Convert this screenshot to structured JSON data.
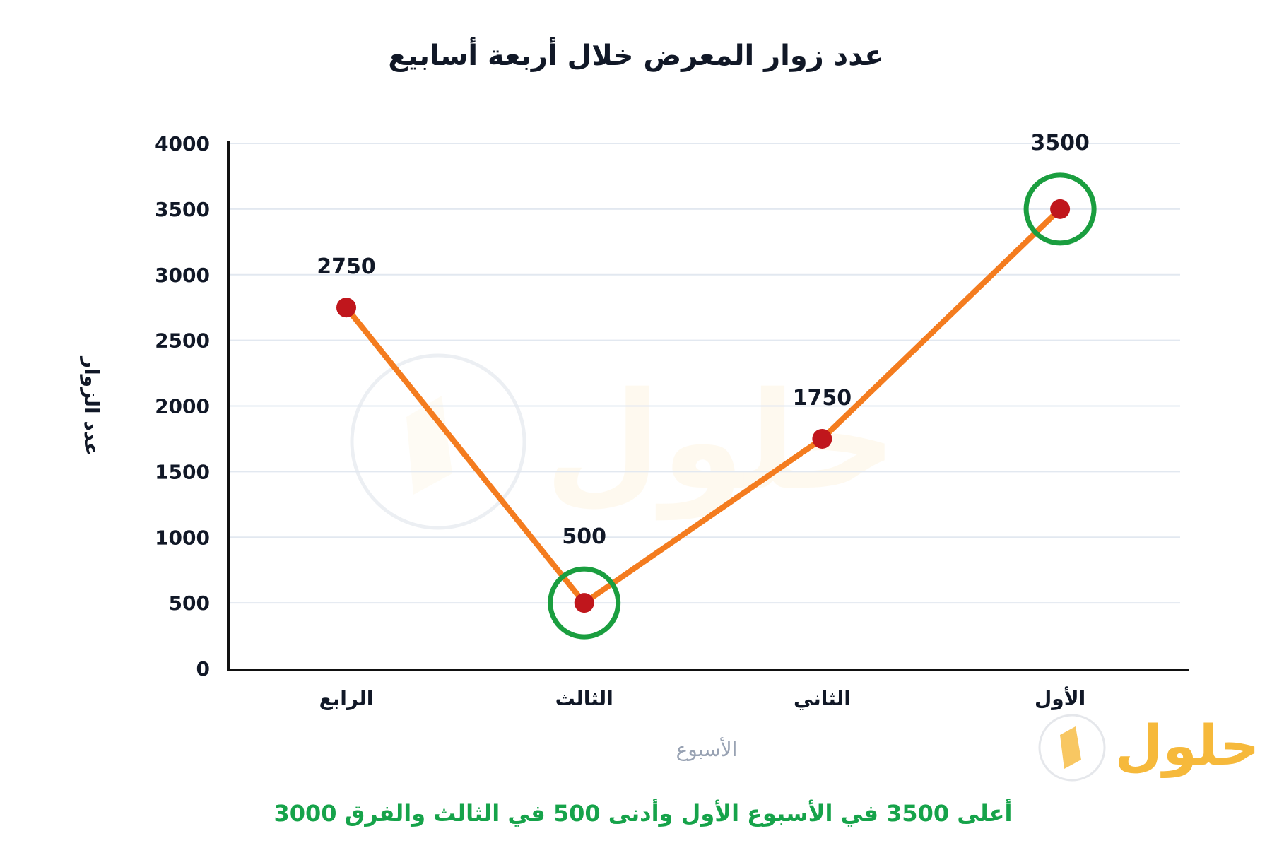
{
  "chart_data": {
    "type": "line",
    "title": "عدد زوار المعرض خلال أربعة أسابيع",
    "xlabel": "الأسبوع",
    "ylabel": "عدد الزوار",
    "categories": [
      "الرابع",
      "الثالث",
      "الثاني",
      "الأول"
    ],
    "series": [
      {
        "values": [
          2750,
          500,
          1750,
          3500
        ]
      }
    ],
    "data_labels": [
      "2750",
      "500",
      "1750",
      "3500"
    ],
    "ylim": [
      0,
      4000
    ],
    "yticks": [
      0,
      500,
      1000,
      1500,
      2000,
      2500,
      3000,
      3500,
      4000
    ],
    "highlighted": [
      1,
      3
    ],
    "grid": true,
    "annotation": "أعلى 3500 في الأسبوع الأول وأدنى 500 في الثالث والفرق 3000",
    "colors": {
      "line": "#f47c1f",
      "marker": "#c0161c",
      "highlight_ring": "#1a9e3f",
      "annotation": "#16a34a"
    }
  },
  "watermark": {
    "text": "حلول"
  }
}
